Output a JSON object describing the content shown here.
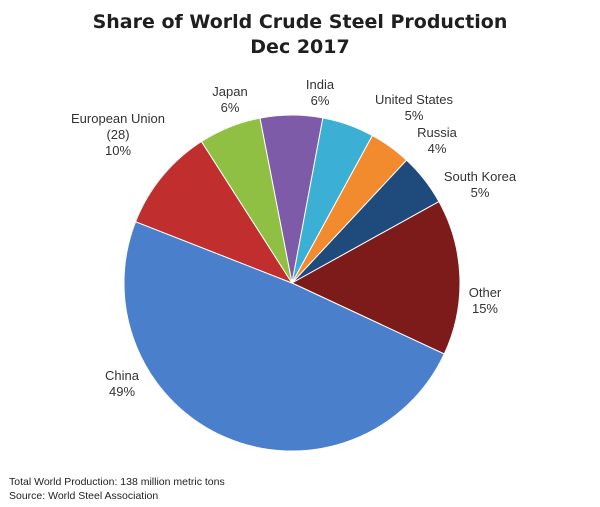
{
  "chart_data": {
    "type": "pie",
    "title": "Share of World Crude Steel Production",
    "subtitle": "Dec 2017",
    "slices": [
      {
        "name": "India",
        "value": 6,
        "label": "6%",
        "color": "#7e5ba8"
      },
      {
        "name": "United States",
        "value": 5,
        "label": "5%",
        "color": "#3cb0d4"
      },
      {
        "name": "Russia",
        "value": 4,
        "label": "4%",
        "color": "#f28a2e"
      },
      {
        "name": "South Korea",
        "value": 5,
        "label": "5%",
        "color": "#1f4a7c"
      },
      {
        "name": "Other",
        "value": 15,
        "label": "15%",
        "color": "#7d1b1b"
      },
      {
        "name": "China",
        "value": 49,
        "label": "49%",
        "color": "#4a7fcb"
      },
      {
        "name": "European Union (28)",
        "name_lines": [
          "European Union",
          "(28)"
        ],
        "value": 10,
        "label": "10%",
        "color": "#c02e2e"
      },
      {
        "name": "Japan",
        "value": 6,
        "label": "6%",
        "color": "#8fc043"
      }
    ],
    "legend": "none"
  },
  "footer": {
    "line1": "Total World Production: 138 million metric tons",
    "line2": "Source: World Steel Association"
  }
}
